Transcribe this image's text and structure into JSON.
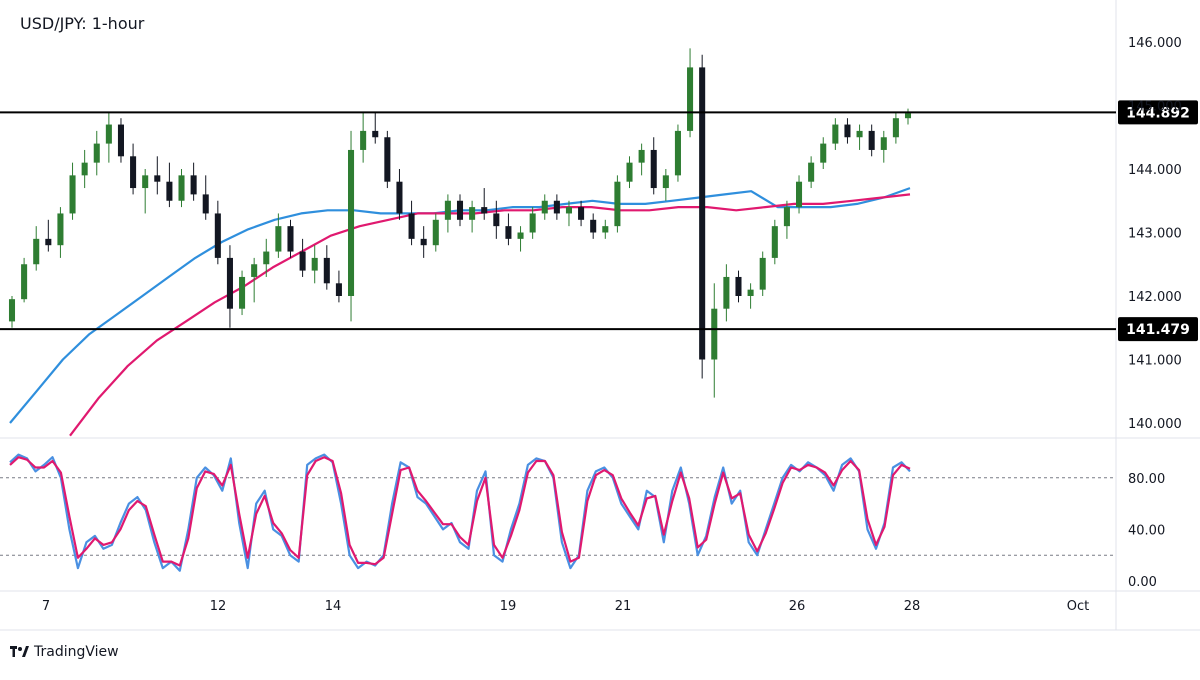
{
  "header": {
    "title": "USD/JPY: 1-hour"
  },
  "brand": {
    "name": "TradingView"
  },
  "colors": {
    "up_candle": "#2e7d32",
    "down_candle": "#131722",
    "ma_fast": "#2f8fdd",
    "ma_slow": "#e0196f",
    "stoch_k": "#4a90e2",
    "stoch_d": "#e0196f",
    "level_line": "#000000"
  },
  "chart_data": [
    {
      "type": "line",
      "title": "USD/JPY: 1-hour",
      "ylim": [
        140.0,
        146.0
      ],
      "y_ticks": [
        "146.000",
        "145.000",
        "144.000",
        "143.000",
        "142.000",
        "141.000",
        "140.000"
      ],
      "x_tick_labels": [
        "7",
        "12",
        "14",
        "19",
        "21",
        "26",
        "28",
        "Oct"
      ],
      "horizontal_levels": [
        {
          "label": "144.892",
          "value": 144.892
        },
        {
          "label": "141.479",
          "value": 141.479
        }
      ],
      "candles": [
        [
          141.6,
          142.0,
          141.5,
          141.95
        ],
        [
          141.95,
          142.6,
          141.9,
          142.5
        ],
        [
          142.5,
          143.1,
          142.4,
          142.9
        ],
        [
          142.9,
          143.2,
          142.7,
          142.8
        ],
        [
          142.8,
          143.4,
          142.6,
          143.3
        ],
        [
          143.3,
          144.1,
          143.2,
          143.9
        ],
        [
          143.9,
          144.3,
          143.7,
          144.1
        ],
        [
          144.1,
          144.6,
          143.9,
          144.4
        ],
        [
          144.4,
          144.9,
          144.1,
          144.7
        ],
        [
          144.7,
          144.8,
          144.1,
          144.2
        ],
        [
          144.2,
          144.4,
          143.6,
          143.7
        ],
        [
          143.7,
          144.0,
          143.3,
          143.9
        ],
        [
          143.9,
          144.2,
          143.6,
          143.8
        ],
        [
          143.8,
          144.1,
          143.4,
          143.5
        ],
        [
          143.5,
          144.0,
          143.4,
          143.9
        ],
        [
          143.9,
          144.1,
          143.5,
          143.6
        ],
        [
          143.6,
          143.9,
          143.2,
          143.3
        ],
        [
          143.3,
          143.5,
          142.5,
          142.6
        ],
        [
          142.6,
          142.8,
          141.5,
          141.8
        ],
        [
          141.8,
          142.4,
          141.7,
          142.3
        ],
        [
          142.3,
          142.6,
          141.9,
          142.5
        ],
        [
          142.5,
          142.9,
          142.3,
          142.7
        ],
        [
          142.7,
          143.3,
          142.6,
          143.1
        ],
        [
          143.1,
          143.2,
          142.6,
          142.7
        ],
        [
          142.7,
          142.9,
          142.3,
          142.4
        ],
        [
          142.4,
          142.8,
          142.2,
          142.6
        ],
        [
          142.6,
          142.8,
          142.1,
          142.2
        ],
        [
          142.2,
          142.4,
          141.9,
          142.0
        ],
        [
          142.0,
          144.6,
          141.6,
          144.3
        ],
        [
          144.3,
          144.9,
          144.1,
          144.6
        ],
        [
          144.6,
          144.9,
          144.4,
          144.5
        ],
        [
          144.5,
          144.6,
          143.7,
          143.8
        ],
        [
          143.8,
          144.0,
          143.2,
          143.3
        ],
        [
          143.3,
          143.5,
          142.8,
          142.9
        ],
        [
          142.9,
          143.1,
          142.6,
          142.8
        ],
        [
          142.8,
          143.3,
          142.7,
          143.2
        ],
        [
          143.2,
          143.6,
          143.0,
          143.5
        ],
        [
          143.5,
          143.6,
          143.1,
          143.2
        ],
        [
          143.2,
          143.5,
          143.0,
          143.4
        ],
        [
          143.4,
          143.7,
          143.2,
          143.3
        ],
        [
          143.3,
          143.5,
          142.9,
          143.1
        ],
        [
          143.1,
          143.3,
          142.8,
          142.9
        ],
        [
          142.9,
          143.1,
          142.7,
          143.0
        ],
        [
          143.0,
          143.4,
          142.9,
          143.3
        ],
        [
          143.3,
          143.6,
          143.2,
          143.5
        ],
        [
          143.5,
          143.6,
          143.2,
          143.3
        ],
        [
          143.3,
          143.5,
          143.1,
          143.4
        ],
        [
          143.4,
          143.5,
          143.1,
          143.2
        ],
        [
          143.2,
          143.3,
          142.9,
          143.0
        ],
        [
          143.0,
          143.2,
          142.9,
          143.1
        ],
        [
          143.1,
          143.9,
          143.0,
          143.8
        ],
        [
          143.8,
          144.2,
          143.7,
          144.1
        ],
        [
          144.1,
          144.4,
          143.9,
          144.3
        ],
        [
          144.3,
          144.5,
          143.6,
          143.7
        ],
        [
          143.7,
          144.0,
          143.5,
          143.9
        ],
        [
          143.9,
          144.7,
          143.8,
          144.6
        ],
        [
          144.6,
          145.9,
          144.5,
          145.6
        ],
        [
          145.6,
          145.8,
          140.7,
          141.0
        ],
        [
          141.0,
          142.2,
          140.4,
          141.8
        ],
        [
          141.8,
          142.5,
          141.6,
          142.3
        ],
        [
          142.3,
          142.4,
          141.9,
          142.0
        ],
        [
          142.0,
          142.2,
          141.8,
          142.1
        ],
        [
          142.1,
          142.7,
          142.0,
          142.6
        ],
        [
          142.6,
          143.2,
          142.5,
          143.1
        ],
        [
          143.1,
          143.5,
          142.9,
          143.4
        ],
        [
          143.4,
          143.9,
          143.3,
          143.8
        ],
        [
          143.8,
          144.2,
          143.7,
          144.1
        ],
        [
          144.1,
          144.5,
          144.0,
          144.4
        ],
        [
          144.4,
          144.8,
          144.3,
          144.7
        ],
        [
          144.7,
          144.8,
          144.4,
          144.5
        ],
        [
          144.5,
          144.7,
          144.3,
          144.6
        ],
        [
          144.6,
          144.7,
          144.2,
          144.3
        ],
        [
          144.3,
          144.6,
          144.1,
          144.5
        ],
        [
          144.5,
          144.9,
          144.4,
          144.8
        ],
        [
          144.8,
          144.95,
          144.7,
          144.88
        ]
      ],
      "series": [
        {
          "values": [
            140.0,
            140.5,
            141.0,
            141.4,
            141.7,
            142.0,
            142.3,
            142.6,
            142.85,
            143.05,
            143.2,
            143.3,
            143.35,
            143.35,
            143.3,
            143.3,
            143.3,
            143.35,
            143.35,
            143.4,
            143.4,
            143.45,
            143.5,
            143.45,
            143.45,
            143.5,
            143.55,
            143.6,
            143.65,
            143.4,
            143.4,
            143.4,
            143.45,
            143.55,
            143.7
          ]
        },
        {
          "values": [
            139.8,
            140.4,
            140.9,
            141.3,
            141.6,
            141.9,
            142.15,
            142.45,
            142.7,
            142.95,
            143.1,
            143.2,
            143.3,
            143.3,
            143.3,
            143.35,
            143.35,
            143.4,
            143.4,
            143.35,
            143.35,
            143.4,
            143.4,
            143.35,
            143.4,
            143.45,
            143.45,
            143.5,
            143.55,
            143.6
          ]
        }
      ]
    },
    {
      "type": "line",
      "ylim": [
        0,
        100
      ],
      "y_ticks": [
        "80.00",
        "40.00",
        "0.00"
      ],
      "reference_levels": [
        80,
        20
      ],
      "series": [
        {
          "values": [
            92,
            98,
            95,
            85,
            90,
            96,
            80,
            40,
            10,
            30,
            35,
            25,
            28,
            45,
            60,
            65,
            55,
            30,
            10,
            15,
            8,
            40,
            80,
            88,
            82,
            70,
            95,
            45,
            10,
            60,
            70,
            40,
            35,
            20,
            15,
            90,
            95,
            98,
            92,
            60,
            20,
            10,
            15,
            12,
            20,
            60,
            92,
            88,
            65,
            60,
            50,
            40,
            45,
            30,
            25,
            70,
            85,
            20,
            15,
            40,
            60,
            90,
            95,
            93,
            80,
            30,
            10,
            20,
            70,
            85,
            88,
            80,
            60,
            50,
            40,
            70,
            65,
            30,
            70,
            88,
            60,
            20,
            35,
            65,
            88,
            60,
            70,
            30,
            20,
            40,
            60,
            80,
            90,
            85,
            92,
            88,
            82,
            70,
            90,
            95,
            85,
            40,
            25,
            45,
            88,
            92,
            85
          ]
        },
        {
          "values": [
            90,
            96,
            94,
            88,
            88,
            93,
            84,
            50,
            18,
            25,
            33,
            28,
            30,
            40,
            55,
            62,
            58,
            36,
            15,
            15,
            12,
            33,
            72,
            85,
            83,
            74,
            90,
            52,
            18,
            52,
            66,
            45,
            37,
            24,
            18,
            82,
            93,
            96,
            93,
            68,
            28,
            14,
            14,
            13,
            18,
            52,
            86,
            88,
            70,
            62,
            53,
            44,
            44,
            34,
            28,
            62,
            80,
            28,
            18,
            35,
            55,
            84,
            93,
            93,
            82,
            38,
            15,
            18,
            62,
            82,
            86,
            82,
            64,
            53,
            43,
            64,
            66,
            36,
            62,
            84,
            64,
            26,
            32,
            60,
            84,
            64,
            68,
            36,
            23,
            37,
            56,
            76,
            88,
            86,
            90,
            88,
            84,
            74,
            86,
            93,
            86,
            48,
            28,
            42,
            82,
            90,
            87
          ]
        }
      ]
    }
  ]
}
